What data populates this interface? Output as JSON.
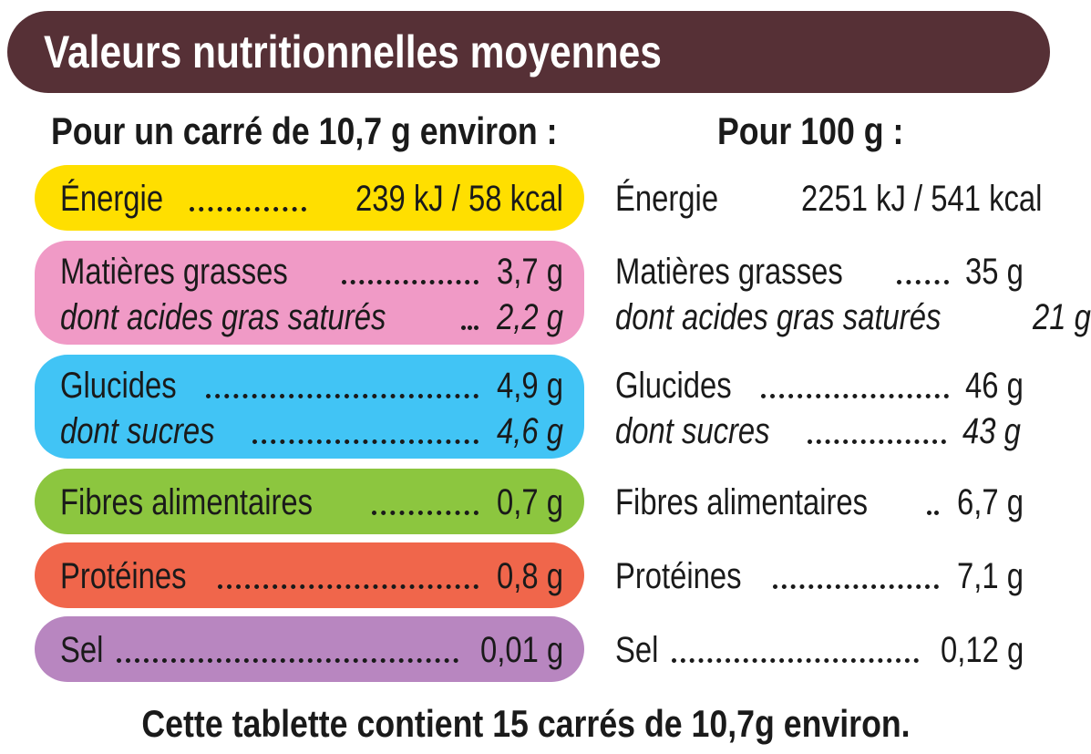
{
  "title": "Valeurs nutritionnelles moyennes",
  "header_left": "Pour un carré de 10,7 g environ :",
  "header_right": "Pour 100 g :",
  "colors": {
    "banner": "#563036",
    "energy": "#ffdf00",
    "fat": "#f09ac6",
    "carbs": "#41c4f5",
    "fibre": "#8cc63f",
    "protein": "#f0664b",
    "salt": "#b886c0"
  },
  "left": {
    "energy": {
      "label": "Énergie",
      "value": "239 kJ / 58 kcal"
    },
    "fat": {
      "label": "Matières grasses",
      "value": "3,7 g"
    },
    "sat_fat": {
      "label": "dont acides gras saturés",
      "value": "2,2 g"
    },
    "carbs": {
      "label": "Glucides",
      "value": "4,9 g"
    },
    "sugars": {
      "label": "dont sucres",
      "value": "4,6 g"
    },
    "fibre": {
      "label": "Fibres alimentaires",
      "value": "0,7 g"
    },
    "protein": {
      "label": "Protéines",
      "value": "0,8 g"
    },
    "salt": {
      "label": "Sel",
      "value": "0,01 g"
    }
  },
  "right": {
    "energy": {
      "label": "Énergie",
      "value": "2251 kJ / 541 kcal"
    },
    "fat": {
      "label": "Matières grasses",
      "value": "35 g"
    },
    "sat_fat": {
      "label": "dont acides gras saturés",
      "value": "21 g"
    },
    "carbs": {
      "label": "Glucides",
      "value": "46 g"
    },
    "sugars": {
      "label": "dont sucres",
      "value": "43 g"
    },
    "fibre": {
      "label": "Fibres alimentaires",
      "value": "6,7 g"
    },
    "protein": {
      "label": "Protéines",
      "value": "7,1 g"
    },
    "salt": {
      "label": "Sel",
      "value": "0,12 g"
    }
  },
  "footer": "Cette tablette contient 15 carrés de 10,7g environ."
}
